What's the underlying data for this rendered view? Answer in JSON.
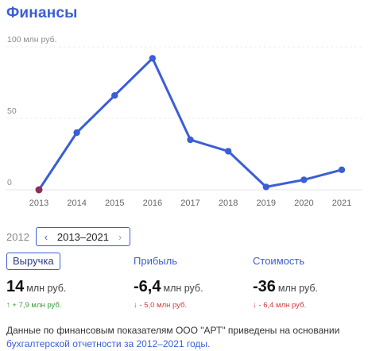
{
  "header": {
    "title": "Финансы"
  },
  "chart_data": {
    "type": "line",
    "x": [
      "2013",
      "2014",
      "2015",
      "2016",
      "2017",
      "2018",
      "2019",
      "2020",
      "2021"
    ],
    "series": [
      {
        "values": [
          0,
          40,
          66,
          92,
          35,
          27,
          2,
          7,
          14
        ]
      }
    ],
    "y_ticks": [
      "100 млн руб.",
      "50",
      "0"
    ],
    "ylim": [
      0,
      100
    ],
    "line_color": "#3b5ed6",
    "first_point_color": "#8a2f5a",
    "grid": true
  },
  "period": {
    "prev_year": "2012",
    "range": "2013–2021",
    "left_arrow": "‹",
    "right_arrow": "›"
  },
  "metrics": [
    {
      "label": "Выручка",
      "value": "14",
      "unit": "млн руб.",
      "delta": "↑ + 7,9 млн руб.",
      "trend": "up",
      "active": true
    },
    {
      "label": "Прибыль",
      "value": "-6,4",
      "unit": "млн руб.",
      "delta": "↓ - 5,0 млн руб.",
      "trend": "down",
      "active": false
    },
    {
      "label": "Стоимость",
      "value": "-36",
      "unit": "млн руб.",
      "delta": "↓ - 6,4 млн руб.",
      "trend": "down",
      "active": false
    }
  ],
  "footer": {
    "text": "Данные по финансовым показателям ООО \"АРТ\" приведены на основании",
    "link": "бухгалтерской отчетности за 2012–2021 годы."
  }
}
